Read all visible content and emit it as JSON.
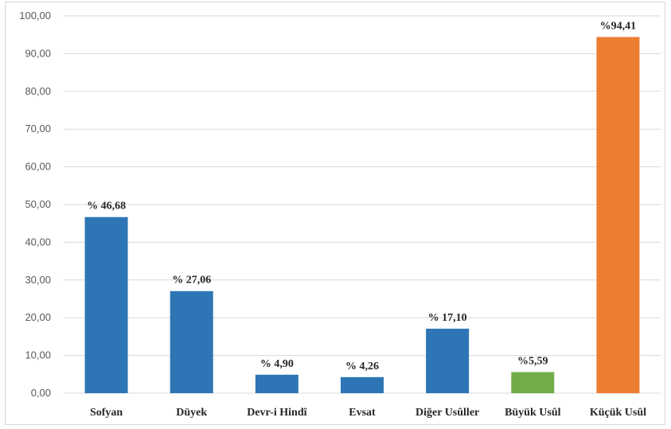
{
  "chart_data": {
    "type": "bar",
    "categories": [
      "Sofyan",
      "Düyek",
      "Devr-i Hindî",
      "Evsat",
      "Diğer Usûller",
      "Büyük Usûl",
      "Küçük Usûl"
    ],
    "values": [
      46.68,
      27.06,
      4.9,
      4.26,
      17.1,
      5.59,
      94.41
    ],
    "data_labels": [
      "% 46,68",
      "% 27,06",
      "% 4,90",
      "% 4,26",
      "% 17,10",
      "%5,59",
      "%94,41"
    ],
    "bar_colors": [
      "#2e75b6",
      "#2e75b6",
      "#2e75b6",
      "#2e75b6",
      "#2e75b6",
      "#70ad47",
      "#ed7d31"
    ],
    "ylim": [
      0,
      100
    ],
    "y_ticks": [
      "0,00",
      "10,00",
      "20,00",
      "30,00",
      "40,00",
      "50,00",
      "60,00",
      "70,00",
      "80,00",
      "90,00",
      "100,00"
    ],
    "grid": true,
    "gridline_color": "#d9d9d9",
    "legend": "none"
  }
}
